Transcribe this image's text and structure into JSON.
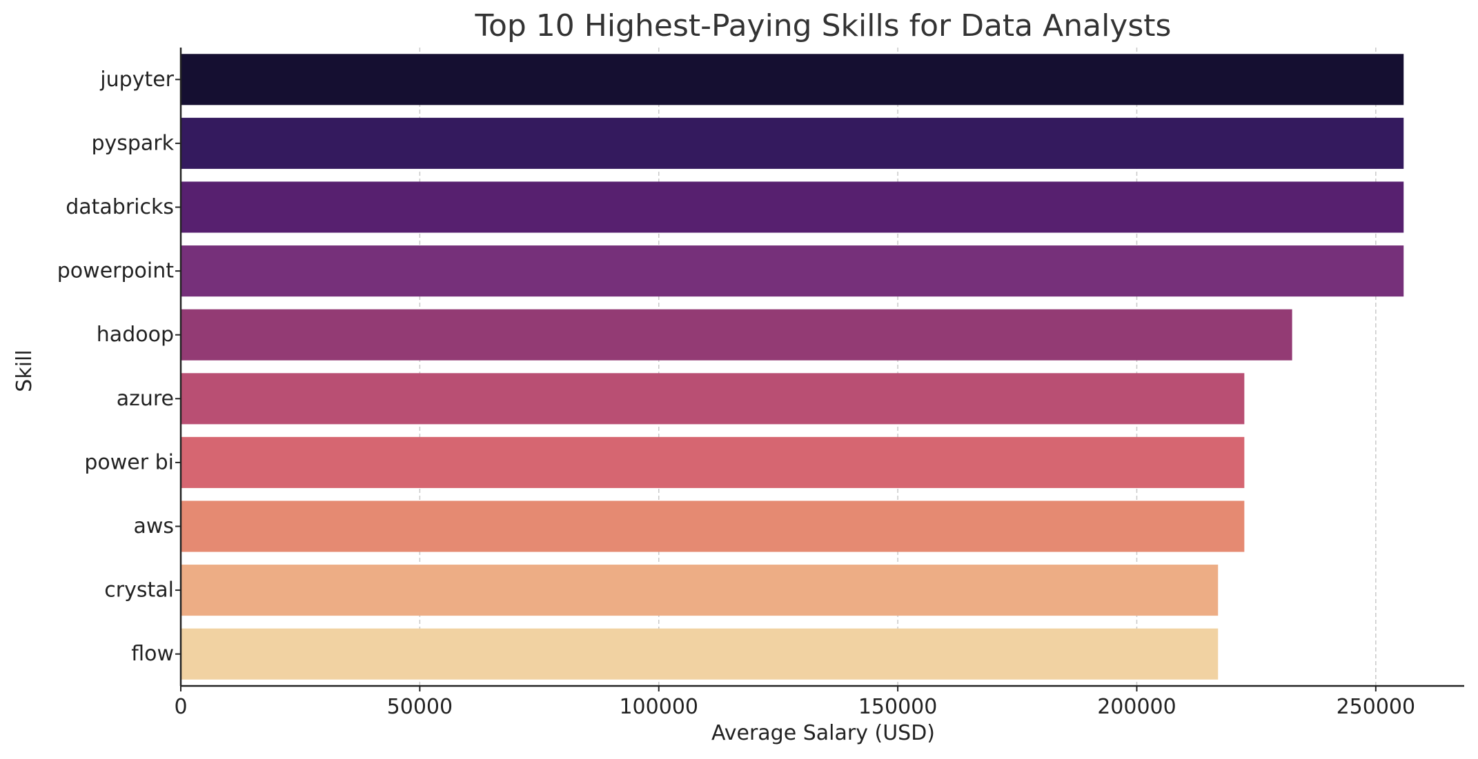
{
  "chart_data": {
    "type": "bar",
    "orientation": "horizontal",
    "title": "Top 10 Highest-Paying Skills for Data Analysts",
    "xlabel": "Average Salary (USD)",
    "ylabel": "Skill",
    "xlim": [
      0,
      268500
    ],
    "xticks": [
      0,
      50000,
      100000,
      150000,
      200000,
      250000
    ],
    "xtick_labels": [
      "0",
      "50000",
      "100000",
      "150000",
      "200000",
      "250000"
    ],
    "grid": "x-dashed",
    "categories": [
      "jupyter",
      "pyspark",
      "databricks",
      "powerpoint",
      "hadoop",
      "azure",
      "power bi",
      "aws",
      "crystal",
      "flow"
    ],
    "values": [
      255829.5,
      255829.5,
      255829.5,
      255829.5,
      232500,
      222500,
      222500,
      222500,
      217000,
      217000
    ],
    "colors": [
      "#150f31",
      "#341a5e",
      "#57206f",
      "#76307a",
      "#933b74",
      "#b94f73",
      "#d66671",
      "#e58a72",
      "#edad85",
      "#f1d2a2"
    ]
  }
}
